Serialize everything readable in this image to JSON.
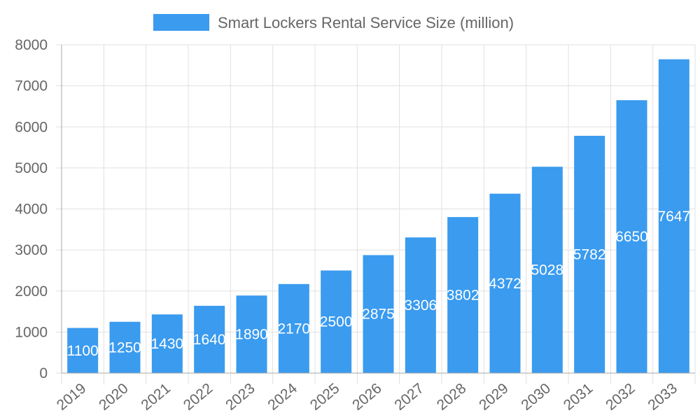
{
  "chart_data": {
    "type": "bar",
    "title": "",
    "xlabel": "",
    "ylabel": "",
    "categories": [
      "2019",
      "2020",
      "2021",
      "2022",
      "2023",
      "2024",
      "2025",
      "2026",
      "2027",
      "2028",
      "2029",
      "2030",
      "2031",
      "2032",
      "2033"
    ],
    "series": [
      {
        "name": "Smart Lockers Rental Service Size (million)",
        "values": [
          1100,
          1250,
          1430,
          1640,
          1890,
          2170,
          2500,
          2875,
          3306,
          3802,
          4372,
          5028,
          5782,
          6650,
          7647
        ]
      }
    ],
    "ylim": [
      0,
      8000
    ],
    "yticks": [
      0,
      1000,
      2000,
      3000,
      4000,
      5000,
      6000,
      7000,
      8000
    ],
    "grid": true,
    "legend": "top",
    "data_labels": "center, inside bars",
    "colors": {
      "bar": "#3a9bef",
      "label": "#ffffff",
      "grid": "#e0e0e0",
      "text": "#666666"
    }
  }
}
